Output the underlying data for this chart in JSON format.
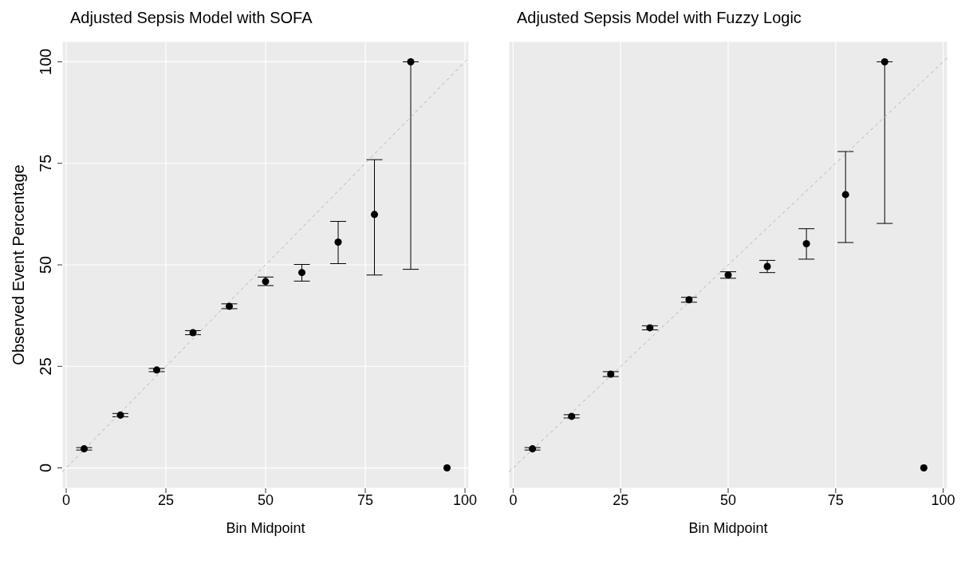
{
  "chart_data": [
    {
      "type": "scatter",
      "title": "Adjusted Sepsis Model with SOFA",
      "xlabel": "Bin Midpoint",
      "ylabel": "Observed Event Percentage",
      "xlim": [
        -1,
        101
      ],
      "ylim": [
        -5,
        105
      ],
      "xticks": [
        0,
        25,
        50,
        75,
        100
      ],
      "yticks": [
        0,
        25,
        50,
        75,
        100
      ],
      "grid": true,
      "series": [
        {
          "type": "scatter",
          "marker": "circle",
          "color": "#000000",
          "x": [
            4.5,
            13.6,
            22.7,
            31.8,
            40.9,
            50,
            59.1,
            68.2,
            77.3,
            86.4,
            95.5
          ],
          "values": [
            4.7,
            13.0,
            24.1,
            33.3,
            39.8,
            45.9,
            48.1,
            55.6,
            62.4,
            100,
            0
          ],
          "errors": [
            [
              4.4,
              5.0
            ],
            [
              12.6,
              13.4
            ],
            [
              23.7,
              24.5
            ],
            [
              32.8,
              33.8
            ],
            [
              39.2,
              40.4
            ],
            [
              44.9,
              47.0
            ],
            [
              46.0,
              50.1
            ],
            [
              50.3,
              60.7
            ],
            [
              47.5,
              75.9
            ],
            [
              48.9,
              100
            ],
            null
          ]
        },
        {
          "type": "line",
          "color": "#b3b3b3",
          "line_style": "dashed",
          "x": [
            -1,
            101
          ],
          "values": [
            -1,
            101
          ]
        }
      ]
    },
    {
      "type": "scatter",
      "title": "Adjusted Sepsis Model with Fuzzy Logic",
      "xlabel": "Bin Midpoint",
      "xlim": [
        -1,
        101
      ],
      "ylim": [
        -5,
        105
      ],
      "xticks": [
        0,
        25,
        50,
        75,
        100
      ],
      "yticks": [
        0,
        25,
        50,
        75,
        100
      ],
      "grid": true,
      "tick_labels": "x",
      "series": [
        {
          "type": "scatter",
          "marker": "circle",
          "color": "#000000",
          "x": [
            4.5,
            13.6,
            22.7,
            31.8,
            40.9,
            50,
            59.1,
            68.2,
            77.3,
            86.4,
            95.5
          ],
          "values": [
            4.7,
            12.7,
            23.1,
            34.5,
            41.4,
            47.5,
            49.6,
            55.2,
            67.3,
            100,
            0
          ],
          "errors": [
            [
              4.4,
              5.0
            ],
            [
              12.3,
              13.1
            ],
            [
              22.5,
              23.7
            ],
            [
              34.0,
              35.0
            ],
            [
              40.8,
              42.0
            ],
            [
              46.7,
              48.3
            ],
            [
              48.1,
              51.1
            ],
            [
              51.4,
              58.9
            ],
            [
              55.5,
              77.9
            ],
            [
              60.2,
              100
            ],
            null
          ]
        },
        {
          "type": "line",
          "color": "#b3b3b3",
          "line_style": "dashed",
          "x": [
            -1,
            101
          ],
          "values": [
            -1,
            101
          ]
        }
      ]
    }
  ]
}
